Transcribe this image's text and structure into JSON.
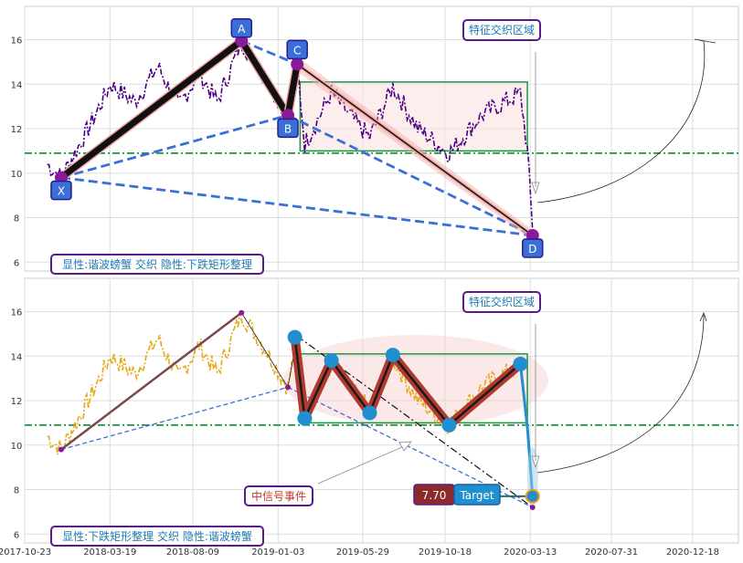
{
  "chart_data": [
    {
      "type": "line",
      "panel": "top",
      "xlim": [
        "2017-10-23",
        "2021-03-07"
      ],
      "ylim": [
        5.6,
        17.5
      ],
      "yticks": [
        6,
        8,
        10,
        12,
        14,
        16
      ],
      "grid": true,
      "series_color": "#4b0082",
      "horizontal_line": {
        "y": 10.9,
        "color": "#1a9641"
      },
      "rectangle": {
        "x0": "2019-02-10",
        "x1": "2020-03-08",
        "y0": 11.0,
        "y1": 14.1,
        "color": "#1a9641"
      },
      "points": [
        {
          "label": "X",
          "x": "2017-12-25",
          "y": 9.8
        },
        {
          "label": "A",
          "x": "2018-11-01",
          "y": 15.95
        },
        {
          "label": "B",
          "x": "2019-01-20",
          "y": 12.6
        },
        {
          "label": "C",
          "x": "2019-02-05",
          "y": 14.9
        },
        {
          "label": "D",
          "x": "2020-03-17",
          "y": 7.2
        }
      ],
      "overlay_text": "特征交织区域",
      "footer_text": "显性:谐波螃蟹 交织 隐性:下跌矩形整理"
    },
    {
      "type": "line",
      "panel": "bottom",
      "xlim": [
        "2017-10-23",
        "2021-03-07"
      ],
      "ylim": [
        5.6,
        17.5
      ],
      "yticks": [
        6,
        8,
        10,
        12,
        14,
        16
      ],
      "xticks": [
        "2017-10-23",
        "2018-03-19",
        "2018-08-09",
        "2019-01-03",
        "2019-05-29",
        "2019-10-18",
        "2020-03-13",
        "2020-07-31",
        "2020-12-18"
      ],
      "grid": true,
      "series_color": "#e6a817",
      "horizontal_line": {
        "y": 10.9,
        "color": "#1a9641"
      },
      "rectangle": {
        "x0": "2019-02-10",
        "x1": "2020-03-08",
        "y0": 11.0,
        "y1": 14.1,
        "color": "#1a9641"
      },
      "zigzag_points": [
        {
          "x": "2019-02-01",
          "y": 14.85
        },
        {
          "x": "2019-02-18",
          "y": 11.2
        },
        {
          "x": "2019-04-05",
          "y": 13.8
        },
        {
          "x": "2019-06-10",
          "y": 11.45
        },
        {
          "x": "2019-07-20",
          "y": 14.05
        },
        {
          "x": "2019-10-25",
          "y": 10.9
        },
        {
          "x": "2020-02-25",
          "y": 13.65
        }
      ],
      "signal_text": "中信号事件",
      "target_value": "7.70",
      "target_label": "Target",
      "overlay_text": "特征交织区域",
      "footer_text": "显性:下跌矩形整理 交织 隐性:谐波螃蟹"
    }
  ]
}
